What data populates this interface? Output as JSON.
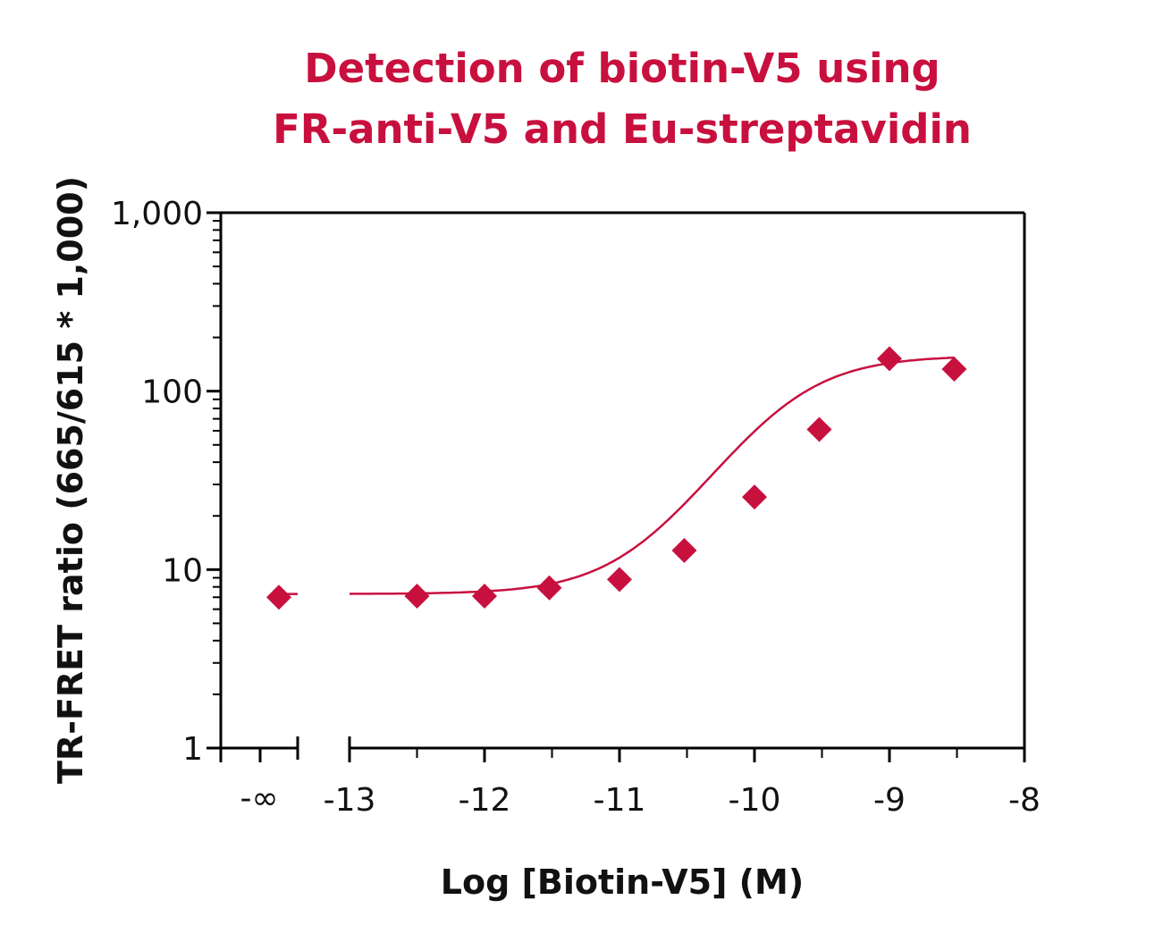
{
  "chart_data": {
    "type": "scatter",
    "title_lines": [
      "Detection of biotin-V5 using",
      "FR-anti-V5 and Eu-streptavidin"
    ],
    "xlabel": "Log [Biotin-V5] (M)",
    "ylabel": "TR-FRET ratio (665/615 * 1,000)",
    "y_scale": "log",
    "ylim": [
      1,
      1000
    ],
    "xlim": [
      -13,
      -8
    ],
    "y_ticks": [
      {
        "value": 1,
        "label": "1"
      },
      {
        "value": 10,
        "label": "10"
      },
      {
        "value": 100,
        "label": "100"
      },
      {
        "value": 1000,
        "label": "1,000"
      }
    ],
    "x_ticks": [
      {
        "value": -13,
        "label": "-13"
      },
      {
        "value": -12,
        "label": "-12"
      },
      {
        "value": -11,
        "label": "-11"
      },
      {
        "value": -10,
        "label": "-10"
      },
      {
        "value": -9,
        "label": "-9"
      },
      {
        "value": -8,
        "label": "-8"
      }
    ],
    "x_break_label": "-∞",
    "zero_dose_point": {
      "y": 7.0
    },
    "points": [
      {
        "x": -12.5,
        "y": 7.1
      },
      {
        "x": -12.0,
        "y": 7.1
      },
      {
        "x": -11.52,
        "y": 7.9
      },
      {
        "x": -11.0,
        "y": 8.8
      },
      {
        "x": -10.52,
        "y": 12.8
      },
      {
        "x": -10.0,
        "y": 25.5
      },
      {
        "x": -9.52,
        "y": 61
      },
      {
        "x": -9.0,
        "y": 152
      },
      {
        "x": -8.52,
        "y": 133
      }
    ],
    "fit_curve": {
      "bottom": 7.3,
      "top": 158,
      "log_ec50": -9.78,
      "hill_slope": 1.25
    },
    "color": "#c8103e"
  }
}
